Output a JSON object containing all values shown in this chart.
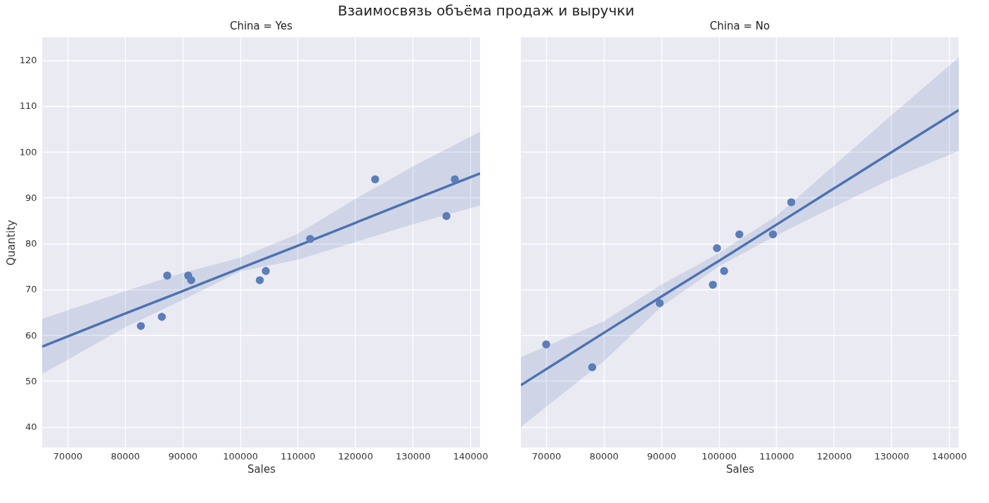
{
  "chart_data": [
    {
      "type": "scatter",
      "title": "Взаимосвязь объёма продаж и выручки",
      "subtitle": "China = Yes",
      "xlabel": "Sales",
      "ylabel": "Quantity",
      "xlim": [
        65600,
        141700
      ],
      "ylim": [
        35.5,
        125
      ],
      "xticks": [
        70000,
        80000,
        90000,
        100000,
        110000,
        120000,
        130000,
        140000
      ],
      "yticks": [
        40,
        50,
        60,
        70,
        80,
        90,
        100,
        110,
        120
      ],
      "grid": true,
      "series": [
        {
          "type": "line",
          "color": "#4c72b0",
          "x": [
            65600,
            80000,
            90000,
            100000,
            110000,
            120000,
            130000,
            141700
          ],
          "values": [
            57.5,
            64.7,
            69.6,
            74.6,
            79.5,
            84.5,
            89.5,
            95.3
          ],
          "lower": [
            51.5,
            61.7,
            67.7,
            73.9,
            76.5,
            80.3,
            84.2,
            88.3
          ],
          "upper": [
            63.6,
            69.6,
            73.6,
            76.9,
            82.1,
            89.7,
            96.8,
            104.4
          ]
        },
        {
          "type": "scatter",
          "marker": "circle",
          "color": "#5b7db8",
          "x": [
            82750,
            86400,
            87330,
            90980,
            91500,
            103420,
            104460,
            112170,
            123460,
            135850,
            137310
          ],
          "values": [
            62,
            64,
            73,
            73,
            72,
            72,
            74,
            81,
            94,
            86,
            94
          ]
        }
      ]
    },
    {
      "type": "scatter",
      "subtitle": "China = No",
      "xlabel": "Sales",
      "xlim": [
        65600,
        141700
      ],
      "ylim": [
        35.5,
        125
      ],
      "xticks": [
        70000,
        80000,
        90000,
        100000,
        110000,
        120000,
        130000,
        140000
      ],
      "yticks": [
        40,
        50,
        60,
        70,
        80,
        90,
        100,
        110,
        120
      ],
      "tick_labels": "x",
      "grid": true,
      "series": [
        {
          "type": "line",
          "color": "#4c72b0",
          "x": [
            65600,
            80000,
            90000,
            100000,
            110000,
            120000,
            130000,
            141700
          ],
          "values": [
            49.1,
            60.5,
            68.4,
            76.2,
            84.1,
            92.0,
            99.9,
            109.1
          ],
          "lower": [
            40.0,
            54.3,
            66.2,
            75.0,
            81.8,
            88.0,
            94.1,
            100.2
          ],
          "upper": [
            55.2,
            63.0,
            71.0,
            77.9,
            86.0,
            97.0,
            108.0,
            120.6
          ]
        },
        {
          "type": "scatter",
          "marker": "circle",
          "color": "#5b7db8",
          "x": [
            70000,
            78000,
            89730,
            99680,
            98970,
            100920,
            103570,
            109410,
            112590
          ],
          "values": [
            58,
            53,
            67,
            79,
            71,
            74,
            82,
            82,
            89
          ]
        }
      ]
    }
  ]
}
